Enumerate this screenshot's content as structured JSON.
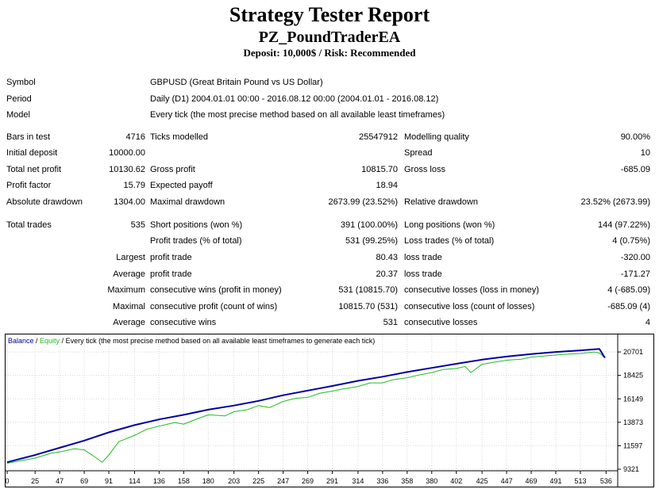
{
  "header": {
    "title": "Strategy Tester Report",
    "ea_name": "PZ_PoundTraderEA",
    "subtitle": "Deposit: 10,000$ / Risk: Recommended"
  },
  "info": {
    "symbol_label": "Symbol",
    "symbol_value": "GBPUSD (Great Britain Pound vs US Dollar)",
    "period_label": "Period",
    "period_value": "Daily (D1) 2004.01.01 00:00 - 2016.08.12 00:00 (2004.01.01 - 2016.08.12)",
    "model_label": "Model",
    "model_value": "Every tick (the most precise method based on all available least timeframes)"
  },
  "stats": {
    "bars_label": "Bars in test",
    "bars_value": "4716",
    "ticks_label": "Ticks modelled",
    "ticks_value": "25547912",
    "quality_label": "Modelling quality",
    "quality_value": "90.00%",
    "deposit_label": "Initial deposit",
    "deposit_value": "10000.00",
    "spread_label": "Spread",
    "spread_value": "10",
    "netprofit_label": "Total net profit",
    "netprofit_value": "10130.62",
    "grossprofit_label": "Gross profit",
    "grossprofit_value": "10815.70",
    "grossloss_label": "Gross loss",
    "grossloss_value": "-685.09",
    "pf_label": "Profit factor",
    "pf_value": "15.79",
    "payoff_label": "Expected payoff",
    "payoff_value": "18.94",
    "absdd_label": "Absolute drawdown",
    "absdd_value": "1304.00",
    "maxdd_label": "Maximal drawdown",
    "maxdd_value": "2673.99 (23.52%)",
    "reldd_label": "Relative drawdown",
    "reldd_value": "23.52% (2673.99)",
    "trades_label": "Total trades",
    "trades_value": "535",
    "short_label": "Short positions (won %)",
    "short_value": "391 (100.00%)",
    "long_label": "Long positions (won %)",
    "long_value": "144 (97.22%)",
    "ptrades_label": "Profit trades (% of total)",
    "ptrades_value": "531 (99.25%)",
    "ltrades_label": "Loss trades (% of total)",
    "ltrades_value": "4 (0.75%)",
    "largest_label": "Largest",
    "largest_profit_label": "profit trade",
    "largest_profit_value": "80.43",
    "largest_loss_label": "loss trade",
    "largest_loss_value": "-320.00",
    "average_label": "Average",
    "average_profit_label": "profit trade",
    "average_profit_value": "20.37",
    "average_loss_label": "loss trade",
    "average_loss_value": "-171.27",
    "maximum_label": "Maximum",
    "maxwins_label": "consecutive wins (profit in money)",
    "maxwins_value": "531 (10815.70)",
    "maxlosses_label": "consecutive losses (loss in money)",
    "maxlosses_value": "4 (-685.09)",
    "maximal_label": "Maximal",
    "maxprofit_label": "consecutive profit (count of wins)",
    "maxprofit_value": "10815.70 (531)",
    "maxloss_label": "consecutive loss (count of losses)",
    "maxloss_value": "-685.09 (4)",
    "average2_label": "Average",
    "avgwins_label": "consecutive wins",
    "avgwins_value": "531",
    "avglosses_label": "consecutive losses",
    "avglosses_value": "4"
  },
  "chart_data": {
    "type": "line",
    "legend": {
      "balance": "Balance",
      "sep1": " / ",
      "equity": "Equity",
      "sep2": " / ",
      "rest": "Every tick (the most precise method based on all available least timeframes to generate each tick)"
    },
    "colors": {
      "balance": "#0000a0",
      "equity": "#22bb22",
      "text": "#000000"
    },
    "xlim": [
      0,
      545
    ],
    "ylim": [
      9321,
      21400
    ],
    "xticks": [
      0,
      25,
      47,
      69,
      91,
      114,
      136,
      158,
      180,
      203,
      225,
      247,
      269,
      291,
      314,
      336,
      358,
      380,
      402,
      425,
      447,
      469,
      491,
      513,
      536
    ],
    "yticks": [
      20701,
      18425,
      16149,
      13873,
      11597,
      9321
    ],
    "series": [
      {
        "name": "Balance",
        "x": [
          0,
          25,
          47,
          69,
          91,
          114,
          136,
          158,
          180,
          203,
          225,
          247,
          269,
          291,
          314,
          336,
          358,
          380,
          402,
          425,
          447,
          469,
          491,
          513,
          530,
          535
        ],
        "y": [
          10000,
          10700,
          11400,
          12100,
          12900,
          13600,
          14150,
          14600,
          15100,
          15500,
          15950,
          16500,
          16950,
          17400,
          17900,
          18300,
          18750,
          19150,
          19550,
          19950,
          20250,
          20500,
          20700,
          20850,
          21000,
          20131
        ]
      },
      {
        "name": "Equity",
        "x": [
          0,
          25,
          40,
          47,
          60,
          69,
          80,
          85,
          91,
          100,
          114,
          125,
          136,
          150,
          158,
          170,
          180,
          195,
          203,
          215,
          225,
          235,
          247,
          258,
          269,
          280,
          291,
          300,
          314,
          325,
          336,
          345,
          358,
          370,
          380,
          390,
          402,
          410,
          415,
          425,
          435,
          447,
          460,
          469,
          480,
          491,
          502,
          513,
          525,
          530,
          535
        ],
        "y": [
          9900,
          10400,
          10900,
          11000,
          11300,
          11200,
          10400,
          10000,
          10700,
          12000,
          12600,
          13200,
          13500,
          13850,
          13700,
          14200,
          14600,
          14500,
          14900,
          15100,
          15500,
          15300,
          15900,
          16200,
          16300,
          16700,
          16900,
          17100,
          17350,
          17700,
          17700,
          18000,
          18200,
          18500,
          18700,
          19000,
          19100,
          19300,
          18700,
          19500,
          19700,
          19900,
          20000,
          20200,
          20300,
          20400,
          20500,
          20550,
          20700,
          20600,
          20131
        ]
      }
    ]
  }
}
